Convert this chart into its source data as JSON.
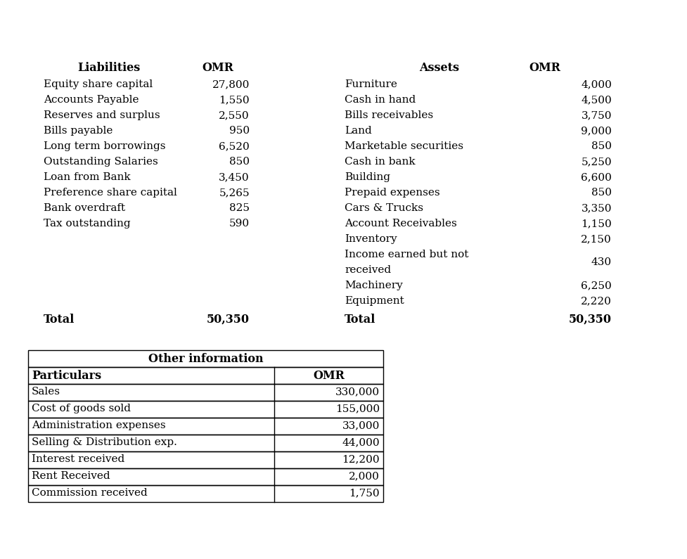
{
  "liabilities": [
    [
      "Equity share capital",
      "27,800"
    ],
    [
      "Accounts Payable",
      "1,550"
    ],
    [
      "Reserves and surplus",
      "2,550"
    ],
    [
      "Bills payable",
      "950"
    ],
    [
      "Long term borrowings",
      "6,520"
    ],
    [
      "Outstanding Salaries",
      "850"
    ],
    [
      "Loan from Bank",
      "3,450"
    ],
    [
      "Preference share capital",
      "5,265"
    ],
    [
      "Bank overdraft",
      "825"
    ],
    [
      "Tax outstanding",
      "590"
    ]
  ],
  "assets": [
    [
      "Furniture",
      "4,000"
    ],
    [
      "Cash in hand",
      "4,500"
    ],
    [
      "Bills receivables",
      "3,750"
    ],
    [
      "Land",
      "9,000"
    ],
    [
      "Marketable securities",
      "850"
    ],
    [
      "Cash in bank",
      "5,250"
    ],
    [
      "Building",
      "6,600"
    ],
    [
      "Prepaid expenses",
      "850"
    ],
    [
      "Cars & Trucks",
      "3,350"
    ],
    [
      "Account Receivables",
      "1,150"
    ],
    [
      "Inventory",
      "2,150"
    ],
    [
      "Income earned but not\nreceived",
      "430"
    ],
    [
      "Machinery",
      "6,250"
    ],
    [
      "Equipment",
      "2,220"
    ]
  ],
  "liabilities_total": "50,350",
  "assets_total": "50,350",
  "other_info": {
    "title": "Other information",
    "headers": [
      "Particulars",
      "OMR"
    ],
    "rows": [
      [
        "Sales",
        "330,000"
      ],
      [
        "Cost of goods sold",
        "155,000"
      ],
      [
        "Administration expenses",
        "33,000"
      ],
      [
        "Selling & Distribution exp.",
        "44,000"
      ],
      [
        "Interest received",
        "12,200"
      ],
      [
        "Rent Received",
        "2,000"
      ],
      [
        "Commission received",
        "1,750"
      ]
    ]
  },
  "background_color": "#ffffff",
  "font_size": 11,
  "header_font_size": 11.5
}
